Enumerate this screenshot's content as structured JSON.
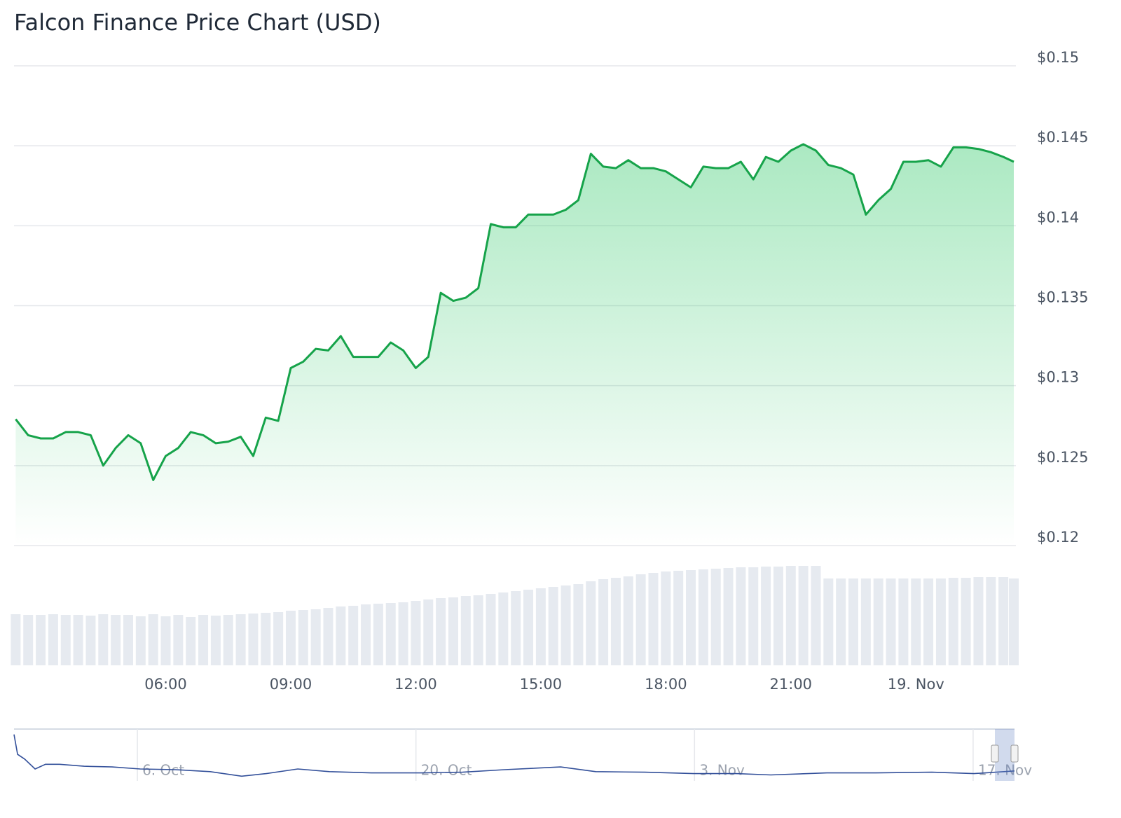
{
  "title": "Falcon Finance Price Chart (USD)",
  "chart_data": [
    {
      "type": "line",
      "area": true,
      "grid": true,
      "series": [
        {
          "name": "Price",
          "color": "#16a34a",
          "x": [
            2.4,
            2.7,
            3.0,
            3.3,
            3.6,
            3.9,
            4.2,
            4.5,
            4.8,
            5.1,
            5.4,
            5.7,
            6.0,
            6.3,
            6.6,
            6.9,
            7.2,
            7.5,
            7.8,
            8.1,
            8.4,
            8.7,
            9.0,
            9.3,
            9.6,
            9.9,
            10.2,
            10.5,
            10.8,
            11.1,
            11.4,
            11.7,
            12.0,
            12.3,
            12.6,
            12.9,
            13.2,
            13.5,
            13.8,
            14.1,
            14.4,
            14.7,
            15.0,
            15.3,
            15.6,
            15.9,
            16.2,
            16.5,
            16.8,
            17.1,
            17.4,
            17.7,
            18.0,
            18.3,
            18.6,
            18.9,
            19.2,
            19.5,
            19.8,
            20.1,
            20.4,
            20.7,
            21.0,
            21.3,
            21.6,
            21.9,
            22.2,
            22.5,
            22.8,
            23.1,
            23.4,
            23.7,
            24.0,
            24.3,
            24.6,
            24.9,
            25.2,
            25.5,
            25.8,
            26.1,
            26.35
          ],
          "values": [
            0.1279,
            0.1269,
            0.1267,
            0.1267,
            0.1271,
            0.1271,
            0.1269,
            0.125,
            0.1261,
            0.1269,
            0.1264,
            0.1241,
            0.1256,
            0.1261,
            0.1271,
            0.1269,
            0.1264,
            0.1265,
            0.1268,
            0.1256,
            0.128,
            0.1278,
            0.1311,
            0.1315,
            0.1323,
            0.1322,
            0.1331,
            0.1318,
            0.1318,
            0.1318,
            0.1327,
            0.1322,
            0.1311,
            0.1318,
            0.1358,
            0.1353,
            0.1355,
            0.1361,
            0.1401,
            0.1399,
            0.1399,
            0.1407,
            0.1407,
            0.1407,
            0.141,
            0.1416,
            0.1445,
            0.1437,
            0.1436,
            0.1441,
            0.1436,
            0.1436,
            0.1434,
            0.1429,
            0.1424,
            0.1437,
            0.1436,
            0.1436,
            0.144,
            0.1429,
            0.1443,
            0.144,
            0.1447,
            0.1451,
            0.1447,
            0.1438,
            0.1436,
            0.1432,
            0.1407,
            0.1416,
            0.1423,
            0.144,
            0.144,
            0.1441,
            0.1437,
            0.1449,
            0.1449,
            0.1448,
            0.1446,
            0.1443,
            0.144
          ]
        }
      ],
      "xlim": [
        2.36,
        26.4
      ],
      "xticks": [
        {
          "value": 6,
          "label": "06:00"
        },
        {
          "value": 9,
          "label": "09:00"
        },
        {
          "value": 12,
          "label": "12:00"
        },
        {
          "value": 15,
          "label": "15:00"
        },
        {
          "value": 18,
          "label": "18:00"
        },
        {
          "value": 21,
          "label": "21:00"
        },
        {
          "value": 24,
          "label": "19. Nov"
        }
      ],
      "ylim": [
        0.12,
        0.15
      ],
      "yticks": [
        {
          "value": 0.12,
          "label": "$0.12"
        },
        {
          "value": 0.125,
          "label": "$0.125"
        },
        {
          "value": 0.13,
          "label": "$0.13"
        },
        {
          "value": 0.135,
          "label": "$0.135"
        },
        {
          "value": 0.14,
          "label": "$0.14"
        },
        {
          "value": 0.145,
          "label": "$0.145"
        },
        {
          "value": 0.15,
          "label": "$0.15"
        }
      ]
    },
    {
      "type": "bar",
      "color": "#e6eaf0",
      "x": [
        2.4,
        2.7,
        3.0,
        3.3,
        3.6,
        3.9,
        4.2,
        4.5,
        4.8,
        5.1,
        5.4,
        5.7,
        6.0,
        6.3,
        6.6,
        6.9,
        7.2,
        7.5,
        7.8,
        8.1,
        8.4,
        8.7,
        9.0,
        9.3,
        9.6,
        9.9,
        10.2,
        10.5,
        10.8,
        11.1,
        11.4,
        11.7,
        12.0,
        12.3,
        12.6,
        12.9,
        13.2,
        13.5,
        13.8,
        14.1,
        14.4,
        14.7,
        15.0,
        15.3,
        15.6,
        15.9,
        16.2,
        16.5,
        16.8,
        17.1,
        17.4,
        17.7,
        18.0,
        18.3,
        18.6,
        18.9,
        19.2,
        19.5,
        19.8,
        20.1,
        20.4,
        20.7,
        21.0,
        21.3,
        21.6,
        21.9,
        22.2,
        22.5,
        22.8,
        23.1,
        23.4,
        23.7,
        24.0,
        24.3,
        24.6,
        24.9,
        25.2,
        25.5,
        25.8,
        26.1,
        26.35
      ],
      "values": [
        73,
        72,
        72,
        73,
        72,
        72,
        71,
        73,
        72,
        72,
        70,
        73,
        70,
        72,
        69,
        72,
        71,
        72,
        73,
        74,
        75,
        76,
        78,
        79,
        80,
        82,
        84,
        85,
        87,
        88,
        89,
        90,
        92,
        94,
        96,
        97,
        99,
        100,
        102,
        104,
        106,
        108,
        110,
        112,
        114,
        116,
        120,
        123,
        125,
        127,
        130,
        132,
        134,
        135,
        136,
        137,
        138,
        139,
        140,
        140,
        141,
        141,
        142,
        142,
        142,
        124,
        124,
        124,
        124,
        124,
        124,
        124,
        124,
        124,
        124,
        125,
        125,
        126,
        126,
        126,
        124
      ],
      "xlim": [
        2.36,
        26.4
      ],
      "ylim": [
        0,
        170
      ]
    },
    {
      "type": "line",
      "color": "#33509a",
      "x": [
        -1.2,
        -1.02,
        -0.67,
        -0.14,
        0.38,
        1.09,
        2.32,
        3.73,
        5.14,
        6.9,
        8.66,
        10.24,
        11.48,
        13.06,
        14.65,
        16.76,
        19.23,
        21.34,
        23.45,
        26.27,
        28.03,
        30.5,
        32.96,
        35.07,
        36.83,
        39.65,
        42.11,
        44.93,
        47.04,
        49.08
      ],
      "values": [
        0.517,
        0.317,
        0.27,
        0.17,
        0.217,
        0.217,
        0.197,
        0.19,
        0.17,
        0.163,
        0.143,
        0.097,
        0.123,
        0.17,
        0.143,
        0.13,
        0.13,
        0.137,
        0.163,
        0.19,
        0.143,
        0.137,
        0.123,
        0.123,
        0.11,
        0.13,
        0.13,
        0.137,
        0.123,
        0.15
      ],
      "xlim": [
        -1.2,
        49.08
      ],
      "ylim": [
        0.05,
        0.55
      ],
      "xticks": [
        {
          "value": 5,
          "label": "6. Oct"
        },
        {
          "value": 19,
          "label": "20. Oct"
        },
        {
          "value": 33,
          "label": "3. Nov"
        },
        {
          "value": 47,
          "label": "17. Nov"
        }
      ]
    }
  ]
}
